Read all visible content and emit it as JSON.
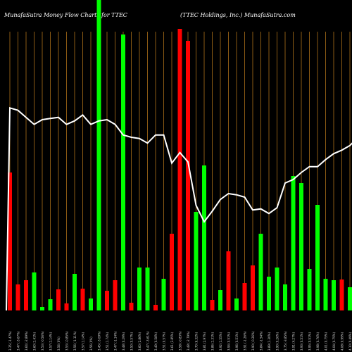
{
  "chart_data": {
    "type": "bar",
    "title_left": "MunafaSutra  Money Flow  Charts for TTEC",
    "title_right": "(TTEC Holdings,  Inc.) MunafaSutra.com",
    "categories": [
      "3.35 (-1.47%)",
      "3.47 (-3.67%)",
      "3.64 (-2.89%)",
      "3.60 (1.41%)",
      "3.53 (-0.56%)",
      "3.57 (1.14%)",
      "3.56 (0%)",
      "3.53 (-0.85%)",
      "3.56 (-1.11%)",
      "3.57 (1.14%)",
      "3.56 (0%)",
      "3.45 (-3.09%)",
      "3.51 (1.74%)",
      "3.47 (-1.14%)",
      "3.48 (0.29%)",
      "3.50 (0.57%)",
      "3.60 (2.86%)",
      "3.47 (-3.61%)",
      "3.49 (0.58%)",
      "3.51 (0.57%)",
      "3.61 (2.85%)",
      "3.58 (-0.83%)",
      "3.48 (-2.79%)",
      "3.70 (6.32%)",
      "3.81 (2.97%)",
      "3.86 (1.31%)",
      "3.92 (1.55%)",
      "3.94 (0.51%)",
      "3.96 (0.51%)",
      "3.91 (-1.26%)",
      "3.90 (-0.26%)",
      "3.84 (-1.54%)",
      "3.89 (1.30%)",
      "3.90 (0.26%)",
      "3.75 (-3.85%)",
      "3.91 (4.27%)",
      "3.93 (0.51%)",
      "3.95 (0.51%)",
      "3.98 (0.76%)",
      "4.01 (0.75%)",
      "4.04 (0.75%)",
      "4.08 (0.99%)",
      "4.10 (0.49%)",
      "4.15 (1.22%)",
      "4.17 (0.48%)",
      "4.24 (1.68%)"
    ],
    "values": [
      196,
      37,
      43,
      54,
      5,
      16,
      30,
      10,
      52,
      31,
      17,
      449,
      28,
      43,
      392,
      11,
      61,
      61,
      8,
      45,
      109,
      400,
      383,
      140,
      206,
      15,
      29,
      84,
      17,
      39,
      64,
      109,
      48,
      61,
      37,
      191,
      181,
      59,
      150,
      45,
      43,
      44,
      33,
      60,
      103,
      68
    ],
    "colors": [
      "red",
      "red",
      "red",
      "green",
      "green",
      "green",
      "red",
      "red",
      "green",
      "red",
      "green",
      "green",
      "red",
      "red",
      "green",
      "red",
      "green",
      "green",
      "red",
      "green",
      "red",
      "red",
      "red",
      "green",
      "green",
      "red",
      "green",
      "red",
      "green",
      "red",
      "red",
      "green",
      "green",
      "green",
      "green",
      "green",
      "green",
      "green",
      "green",
      "green",
      "green",
      "red",
      "green",
      "green",
      "green",
      "green"
    ],
    "line": [
      4.0,
      3.98,
      3.92,
      3.86,
      3.9,
      3.91,
      3.92,
      3.86,
      3.89,
      3.94,
      3.86,
      3.89,
      3.9,
      3.86,
      3.77,
      3.75,
      3.74,
      3.7,
      3.77,
      3.77,
      3.53,
      3.62,
      3.54,
      3.17,
      3.03,
      3.12,
      3.22,
      3.27,
      3.26,
      3.24,
      3.13,
      3.14,
      3.1,
      3.15,
      3.36,
      3.39,
      3.45,
      3.5,
      3.5,
      3.56,
      3.61,
      3.64,
      3.68,
      3.75,
      3.85,
      3.94
    ],
    "colors_hex": {
      "red": "#ff0000",
      "green": "#00ff00",
      "line": "#ffffff",
      "grid": "#8a5a14",
      "background": "#000000"
    }
  }
}
